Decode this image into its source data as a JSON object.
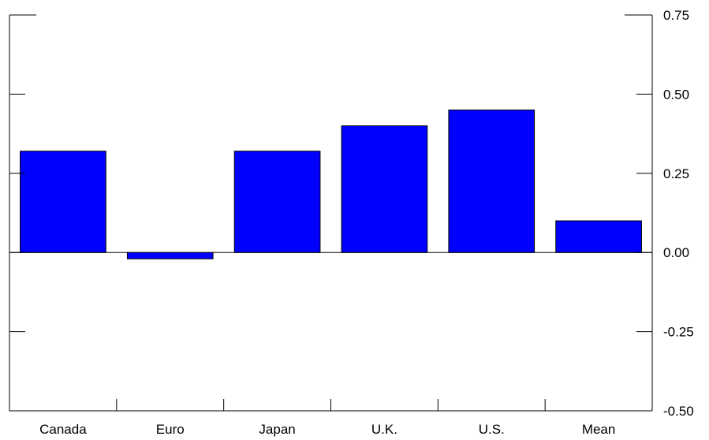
{
  "chart_data": {
    "type": "bar",
    "title": "",
    "xlabel": "",
    "ylabel": "",
    "categories": [
      "Canada",
      "Euro",
      "Japan",
      "U.K.",
      "U.S.",
      "Mean"
    ],
    "values": [
      0.32,
      -0.02,
      0.32,
      0.4,
      0.45,
      0.1
    ],
    "ylim": [
      -0.5,
      0.75
    ],
    "yticks": [
      0.75,
      0.5,
      0.25,
      0.0,
      -0.25,
      -0.5
    ],
    "ytick_labels": [
      "0.75",
      "0.50",
      "0.25",
      "0.00",
      "-0.25",
      "-0.50"
    ],
    "y_axis_side": "right",
    "grid": false,
    "legend": "none",
    "bar_color": "#0000ff",
    "bar_edge_color": "#000000"
  }
}
